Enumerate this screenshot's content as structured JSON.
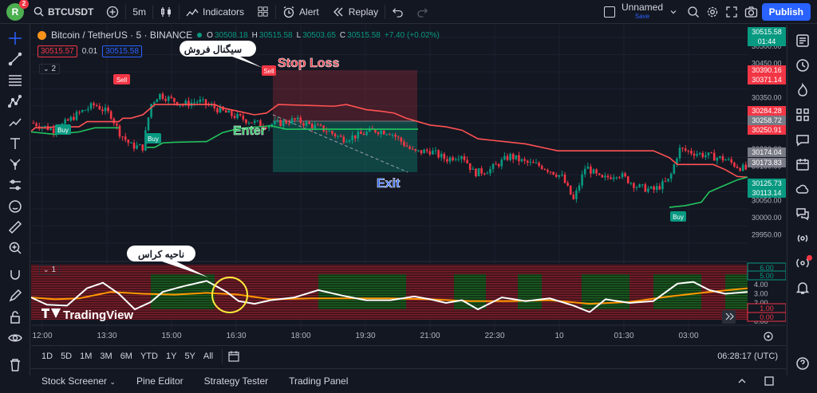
{
  "topbar": {
    "avatar_letter": "R",
    "notifications": "2",
    "symbol": "BTCUSDT",
    "interval": "5m",
    "indicators": "Indicators",
    "alert": "Alert",
    "replay": "Replay",
    "layout_name": "Unnamed",
    "layout_status": "Save",
    "publish": "Publish"
  },
  "legend": {
    "title": "Bitcoin / TetherUS · 5 · BINANCE",
    "o_label": "O",
    "o": "30508.18",
    "h_label": "H",
    "h": "30515.58",
    "l_label": "L",
    "l": "30503.65",
    "c_label": "C",
    "c": "30515.58",
    "change": "+7.40 (+0.02%)",
    "bid": "30515.57",
    "spread": "0.01",
    "ask": "30515.58",
    "collapse": "2",
    "sub_collapse": "1"
  },
  "annotations": {
    "sell_signal_fa": "سیگنال فروش",
    "stop_loss": "Stop Loss",
    "enter": "Enter",
    "exit": "Exit",
    "cross_zone_fa": "ناحیه کراس",
    "sell_tag": "Sell",
    "buy_tag": "Buy"
  },
  "watermark": "TradingView",
  "price_axis": {
    "ticks": [
      "30500.00",
      "30450.00",
      "30400.00",
      "30350.00",
      "30300.00",
      "30250.00",
      "30200.00",
      "30150.00",
      "30100.00",
      "30050.00",
      "30000.00",
      "29950.00"
    ],
    "labels": [
      {
        "text": "30515.58",
        "sub": "01:44",
        "color": "#089981"
      },
      {
        "text": "30390.16",
        "color": "#f23645"
      },
      {
        "text": "30371.14",
        "color": "#f23645"
      },
      {
        "text": "30284.28",
        "color": "#f23645"
      },
      {
        "text": "30258.72",
        "color": "#787b86"
      },
      {
        "text": "30250.91",
        "color": "#f23645"
      },
      {
        "text": "30174.04",
        "color": "#787b86"
      },
      {
        "text": "30173.83",
        "color": "#787b86"
      },
      {
        "text": "30125.73",
        "color": "#089981"
      },
      {
        "text": "30113.14",
        "color": "#089981"
      }
    ],
    "osc_ticks": [
      "6.00",
      "5.00",
      "4.00",
      "3.00",
      "2.00",
      "1.00",
      "0.00"
    ],
    "osc_labels": [
      {
        "text": "6.00",
        "color": "#089981"
      },
      {
        "text": "5.00",
        "color": "#089981"
      },
      {
        "text": "1.00",
        "color": "#f23645"
      },
      {
        "text": "0.00",
        "color": "#f23645"
      }
    ]
  },
  "time_axis": [
    "12:00",
    "13:30",
    "15:00",
    "16:30",
    "18:00",
    "19:30",
    "21:00",
    "22:30",
    "10",
    "01:30",
    "03:00"
  ],
  "ranges": [
    "1D",
    "5D",
    "1M",
    "3M",
    "6M",
    "YTD",
    "1Y",
    "5Y",
    "All"
  ],
  "clock": "06:28:17 (UTC)",
  "panels": [
    "Stock Screener",
    "Pine Editor",
    "Strategy Tester",
    "Trading Panel"
  ],
  "colors": {
    "up": "#089981",
    "down": "#f23645",
    "accent": "#2962ff",
    "orange": "#ff9800",
    "stop_line": "#ff5252",
    "support": "#22c55e"
  }
}
